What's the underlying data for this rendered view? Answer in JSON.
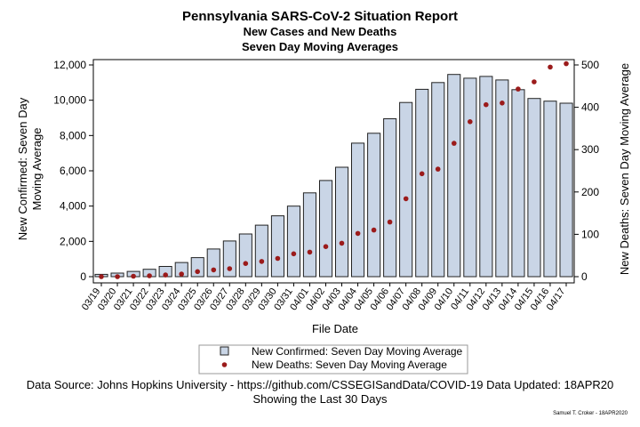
{
  "title": "Pennsylvania SARS-CoV-2 Situation Report",
  "subtitle1": "New Cases and New Deaths",
  "subtitle2": "Seven Day Moving Averages",
  "footnote1": "Data Source: Johns Hopkins University - https://github.com/CSSEGISandData/COVID-19 Data Updated: 18APR20",
  "footnote2": "Showing the Last 30 Days",
  "signature": "Samuel T. Croker - 18APR2020",
  "colors": {
    "bar_fill": "#c9d5e6",
    "bar_stroke": "#222222",
    "point": "#9b1b1b",
    "axis": "#000000"
  },
  "chart_data": {
    "type": "bar",
    "xlabel": "File Date",
    "ylabel_left": "New Confirmed: Seven Day Moving Average",
    "ylabel_right": "New Deaths: Seven Day Moving Average",
    "ylim_left": [
      0,
      12000
    ],
    "yticks_left": [
      0,
      2000,
      4000,
      6000,
      8000,
      10000,
      12000
    ],
    "yticklabels_left": [
      "0",
      "2,000",
      "4,000",
      "6,000",
      "8,000",
      "10,000",
      "12,000"
    ],
    "ylim_right": [
      0,
      500
    ],
    "yticks_right": [
      0,
      100,
      200,
      300,
      400,
      500
    ],
    "yticklabels_right": [
      "0",
      "100",
      "200",
      "300",
      "400",
      "500"
    ],
    "categories": [
      "03/19",
      "03/20",
      "03/21",
      "03/22",
      "03/23",
      "03/24",
      "03/25",
      "03/26",
      "03/27",
      "03/28",
      "03/29",
      "03/30",
      "03/31",
      "04/01",
      "04/02",
      "04/03",
      "04/04",
      "04/05",
      "04/06",
      "04/07",
      "04/08",
      "04/09",
      "04/10",
      "04/11",
      "04/12",
      "04/13",
      "04/14",
      "04/15",
      "04/16",
      "04/17"
    ],
    "series": [
      {
        "name": "New Confirmed: Seven Day Moving Average",
        "kind": "bar",
        "axis": "left",
        "values": [
          130,
          200,
          300,
          420,
          580,
          800,
          1080,
          1570,
          2020,
          2420,
          2920,
          3450,
          4000,
          4750,
          5450,
          6200,
          7570,
          8130,
          8950,
          9870,
          10620,
          11000,
          11460,
          11250,
          11350,
          11150,
          10600,
          10100,
          9950,
          9830
        ]
      },
      {
        "name": "New Deaths: Seven Day Moving Average",
        "kind": "scatter",
        "axis": "right",
        "values": [
          0,
          0,
          1,
          2,
          4,
          6,
          12,
          16,
          19,
          31,
          36,
          43,
          54,
          58,
          71,
          79,
          102,
          110,
          129,
          184,
          243,
          254,
          315,
          366,
          406,
          410,
          443,
          460,
          495,
          503
        ]
      }
    ],
    "legend": [
      "New Confirmed: Seven Day Moving Average",
      "New Deaths: Seven Day Moving Average"
    ],
    "legend_position": "bottom",
    "grid": false
  }
}
